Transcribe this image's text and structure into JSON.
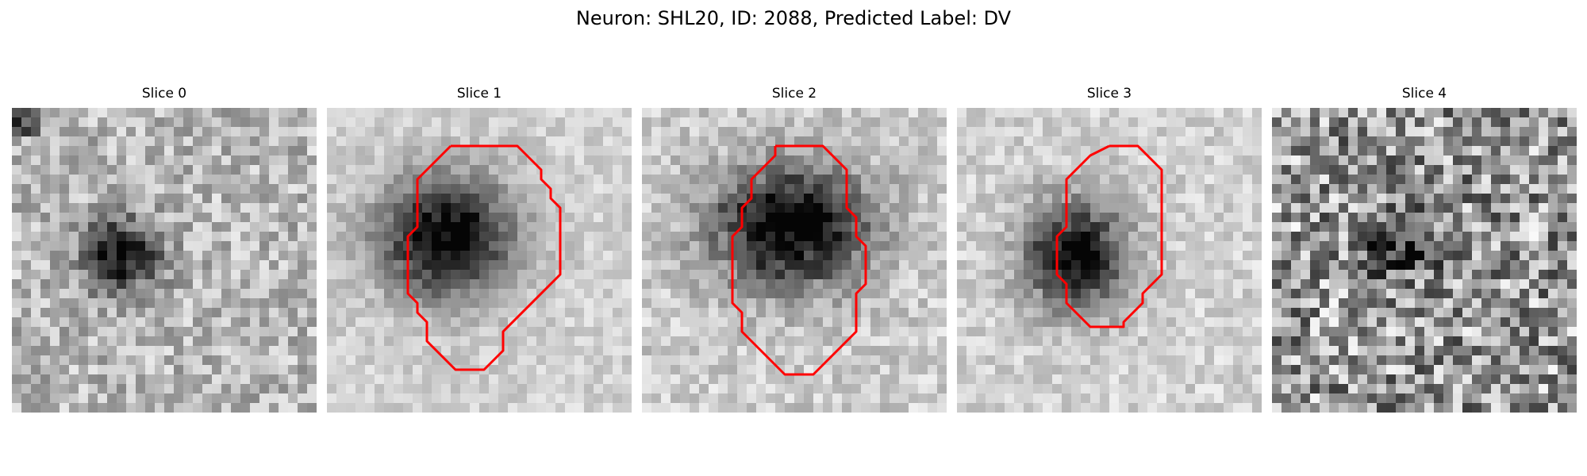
{
  "figure": {
    "title": "Neuron: SHL20, ID: 2088, Predicted Label: DV",
    "contour_color": "#ff0000",
    "colormap": "gray"
  },
  "slices": [
    {
      "title": "Slice 0",
      "has_contour": false
    },
    {
      "title": "Slice 1",
      "has_contour": true
    },
    {
      "title": "Slice 2",
      "has_contour": true
    },
    {
      "title": "Slice 3",
      "has_contour": true
    },
    {
      "title": "Slice 4",
      "has_contour": false
    }
  ]
}
